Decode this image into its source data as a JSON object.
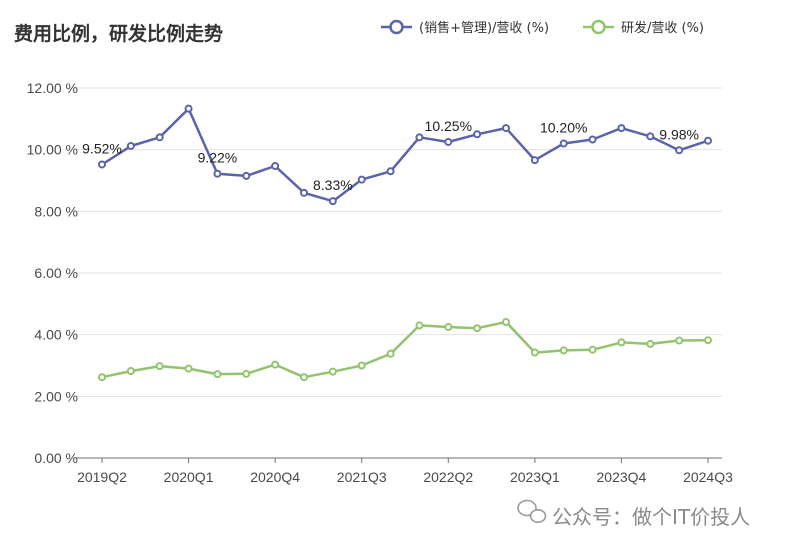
{
  "chart_data": {
    "type": "line",
    "title": "费用比例，研发比例走势",
    "x": [
      "2019Q2",
      "2019Q3",
      "2019Q4",
      "2020Q1",
      "2020Q2",
      "2020Q3",
      "2020Q4",
      "2021Q1",
      "2021Q2",
      "2021Q3",
      "2021Q4",
      "2022Q1",
      "2022Q2",
      "2022Q3",
      "2022Q4",
      "2023Q1",
      "2023Q2",
      "2023Q3",
      "2023Q4",
      "2024Q1",
      "2024Q2",
      "2024Q3"
    ],
    "xticks": [
      "2019Q2",
      "2020Q1",
      "2020Q4",
      "2021Q3",
      "2022Q2",
      "2023Q1",
      "2023Q4",
      "2024Q3"
    ],
    "ylim": [
      0,
      12
    ],
    "yticks": [
      "0.00 %",
      "2.00 %",
      "4.00 %",
      "6.00 %",
      "8.00 %",
      "10.00 %",
      "12.00 %"
    ],
    "grid": true,
    "legend_position": "top-right",
    "series": [
      {
        "name": "(销售+管理)/营收 (%)",
        "color": "#5b63ad",
        "values": [
          9.52,
          10.12,
          10.4,
          11.33,
          9.22,
          9.15,
          9.47,
          8.6,
          8.33,
          9.03,
          9.3,
          10.4,
          10.25,
          10.5,
          10.7,
          9.66,
          10.2,
          10.33,
          10.7,
          10.43,
          9.98,
          10.29
        ],
        "labels": [
          {
            "index": 0,
            "text": "9.52%"
          },
          {
            "index": 4,
            "text": "9.22%"
          },
          {
            "index": 8,
            "text": "8.33%"
          },
          {
            "index": 12,
            "text": "10.25%"
          },
          {
            "index": 16,
            "text": "10.20%"
          },
          {
            "index": 20,
            "text": "9.98%"
          }
        ]
      },
      {
        "name": "研发/营收 (%)",
        "color": "#91c46c",
        "values": [
          2.62,
          2.82,
          2.98,
          2.9,
          2.72,
          2.73,
          3.03,
          2.62,
          2.8,
          3.0,
          3.38,
          4.3,
          4.25,
          4.21,
          4.41,
          3.42,
          3.49,
          3.51,
          3.75,
          3.7,
          3.81,
          3.82
        ]
      }
    ]
  },
  "watermark": "公众号：做个IT价投人"
}
